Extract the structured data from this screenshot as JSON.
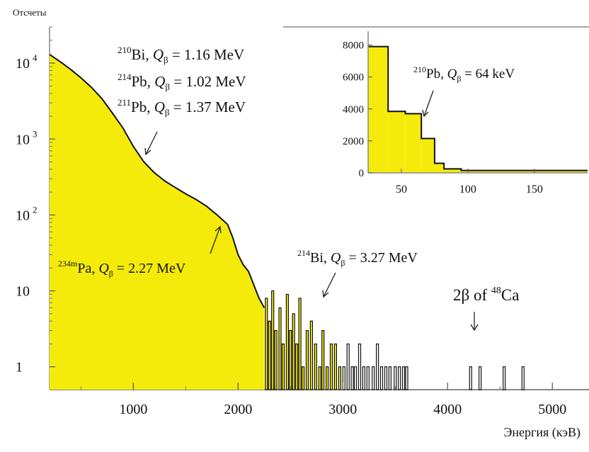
{
  "chart_data": [
    {
      "type": "bar",
      "ylabel": "Отсчеты",
      "xlabel": "Энергия (кэВ)",
      "y_scale": "log",
      "ylim": [
        0.5,
        30000
      ],
      "xlim": [
        200,
        5350
      ],
      "y_ticks": [
        {
          "value": 10000,
          "base": "10",
          "exp": "4"
        },
        {
          "value": 1000,
          "base": "10",
          "exp": "3"
        },
        {
          "value": 100,
          "base": "10",
          "exp": "2"
        },
        {
          "value": 10,
          "base": "10",
          "exp": ""
        },
        {
          "value": 1,
          "base": "1",
          "exp": ""
        }
      ],
      "x_ticks": [
        1000,
        2000,
        3000,
        4000,
        5000
      ],
      "fill_color": "#f5eb0a",
      "continuum": {
        "x": [
          200,
          300,
          400,
          500,
          600,
          700,
          800,
          900,
          1000,
          1100,
          1200,
          1300,
          1400,
          1500,
          1600,
          1700,
          1800,
          1900,
          1950,
          2000,
          2050,
          2100,
          2150,
          2200,
          2250
        ],
        "counts": [
          13000,
          10500,
          8300,
          6400,
          4800,
          3400,
          2200,
          1400,
          800,
          500,
          360,
          280,
          230,
          190,
          160,
          130,
          100,
          75,
          50,
          30,
          22,
          18,
          12,
          8,
          6
        ]
      },
      "tail_events": {
        "x": [
          2270,
          2300,
          2330,
          2360,
          2400,
          2430,
          2470,
          2500,
          2530,
          2560,
          2590,
          2620,
          2660,
          2700,
          2740,
          2780,
          2810,
          2850,
          2890,
          2930,
          2970,
          3010,
          3050,
          3090,
          3120,
          3160,
          3200,
          3240,
          3290,
          3330,
          3370,
          3410,
          3450,
          3500,
          3540,
          3580,
          3610,
          4220,
          4310,
          4540,
          4720
        ],
        "counts": [
          8,
          4,
          10,
          3,
          6,
          2,
          9,
          3,
          5,
          2,
          8,
          1,
          3,
          4,
          2,
          1,
          3,
          1,
          2,
          2,
          1,
          1,
          2,
          1,
          1,
          2,
          1,
          1,
          1,
          2,
          1,
          1,
          1,
          1,
          1,
          1,
          1,
          1,
          1,
          1,
          1
        ]
      }
    },
    {
      "type": "bar",
      "xlim": [
        25,
        190
      ],
      "ylim": [
        0,
        8600
      ],
      "x_ticks": [
        50,
        100,
        150
      ],
      "y_ticks": [
        0,
        2000,
        4000,
        6000,
        8000
      ],
      "bins": [
        {
          "x0": 25,
          "x1": 40,
          "value": 7900
        },
        {
          "x0": 40,
          "x1": 53,
          "value": 3850
        },
        {
          "x0": 53,
          "x1": 65,
          "value": 3700
        },
        {
          "x0": 65,
          "x1": 75,
          "value": 2150
        },
        {
          "x0": 75,
          "x1": 82,
          "value": 600
        },
        {
          "x0": 82,
          "x1": 95,
          "value": 250
        },
        {
          "x0": 95,
          "x1": 190,
          "value": 150
        }
      ],
      "fill_color": "#f5eb0a",
      "annotation": {
        "sup": "210",
        "element": "Pb, ",
        "q": "Q",
        "sub": "β",
        "rest": " = 64 keV"
      }
    }
  ],
  "annotations": {
    "group1": [
      {
        "sup": "210",
        "element": "Bi, ",
        "q": "Q",
        "sub": "β",
        "rest": " = 1.16 MeV"
      },
      {
        "sup": "214",
        "element": "Pb, ",
        "q": "Q",
        "sub": "β",
        "rest": " = 1.02 MeV"
      },
      {
        "sup": "211",
        "element": "Pb, ",
        "q": "Q",
        "sub": "β",
        "rest": " = 1.37 MeV"
      }
    ],
    "pa": {
      "sup": "234m",
      "element": "Pa, ",
      "q": "Q",
      "sub": "β",
      "rest": " = 2.27 MeV"
    },
    "bi214": {
      "sup": "214",
      "element": "Bi, ",
      "q": "Q",
      "sub": "β",
      "rest": " = 3.27 MeV"
    },
    "double_beta": {
      "pre": "2β of ",
      "sup": "48",
      "element": "Ca"
    }
  }
}
